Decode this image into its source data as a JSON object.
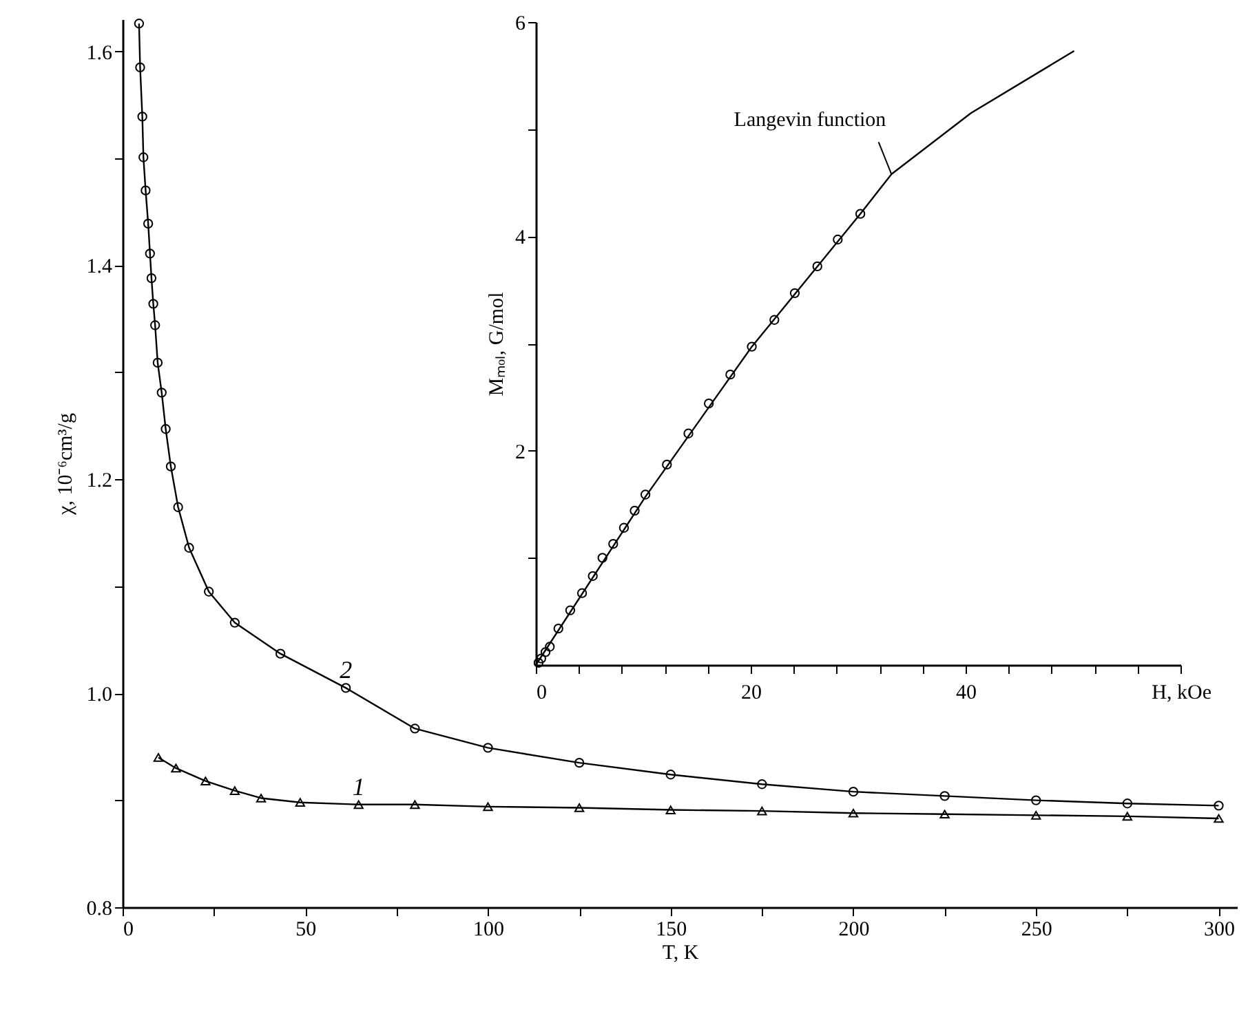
{
  "chart_data": [
    {
      "type": "line",
      "xlabel": "T, K",
      "ylabel": "χ, 10⁻⁶cm³/g",
      "xlim": [
        0,
        305
      ],
      "ylim": [
        0.8,
        1.63
      ],
      "grid": false,
      "xticks": [
        0,
        {
          "value": 25,
          "label": null
        },
        50,
        {
          "value": 75,
          "label": null
        },
        100,
        {
          "value": 125,
          "label": null
        },
        150,
        {
          "value": 175,
          "label": null
        },
        200,
        {
          "value": 225,
          "label": null
        },
        250,
        {
          "value": 275,
          "label": null
        },
        300
      ],
      "yticks": [
        {
          "value": 0.8,
          "label": "0.8"
        },
        {
          "value": 0.9,
          "label": null
        },
        {
          "value": 1.0,
          "label": "1.0"
        },
        {
          "value": 1.1,
          "label": null
        },
        {
          "value": 1.2,
          "label": "1.2"
        },
        {
          "value": 1.3,
          "label": null
        },
        {
          "value": 1.4,
          "label": "1.4"
        },
        {
          "value": 1.5,
          "label": null
        },
        {
          "value": 1.6,
          "label": "1.6"
        }
      ],
      "series": [
        {
          "color": "#000000",
          "marker": "circle",
          "x": [
            4.5,
            4.8,
            5.4,
            5.7,
            6.3,
            7.0,
            7.5,
            7.9,
            8.4,
            8.9,
            9.6,
            10.7,
            11.8,
            13.2,
            15.2,
            18.2,
            23.6,
            30.7,
            43.2,
            61.1,
            80,
            100,
            125,
            150,
            175,
            200,
            225,
            250,
            275,
            300
          ],
          "values": [
            1.626,
            1.585,
            1.539,
            1.501,
            1.47,
            1.439,
            1.411,
            1.388,
            1.364,
            1.344,
            1.309,
            1.281,
            1.247,
            1.212,
            1.174,
            1.136,
            1.095,
            1.066,
            1.037,
            1.005,
            0.967,
            0.949,
            0.935,
            0.924,
            0.915,
            0.908,
            0.904,
            0.9,
            0.897,
            0.895
          ]
        },
        {
          "color": "#000000",
          "marker": "triangle",
          "x": [
            9.8,
            14.6,
            22.7,
            30.7,
            37.9,
            48.6,
            64.6,
            80,
            100,
            125,
            150,
            175,
            200,
            225,
            250,
            275,
            300
          ],
          "values": [
            0.94,
            0.93,
            0.918,
            0.909,
            0.902,
            0.898,
            0.896,
            0.896,
            0.894,
            0.893,
            0.891,
            0.89,
            0.888,
            0.887,
            0.886,
            0.885,
            0.883
          ]
        }
      ],
      "annotations": [
        {
          "text": "2",
          "x": 61.1,
          "y": 1.005
        },
        {
          "text": "1",
          "x": 64.6,
          "y": 0.896
        }
      ]
    },
    {
      "type": "scatter",
      "xlabel": "H, kOe",
      "ylabel": "Mₘₒₗ, G/mol",
      "xlim": [
        0,
        60
      ],
      "ylim": [
        0,
        6
      ],
      "grid": false,
      "xticks": [
        0,
        {
          "value": 4,
          "label": null
        },
        {
          "value": 8,
          "label": null
        },
        {
          "value": 12,
          "label": null
        },
        {
          "value": 16,
          "label": null
        },
        20,
        {
          "value": 24,
          "label": null
        },
        {
          "value": 28,
          "label": null
        },
        {
          "value": 32,
          "label": null
        },
        {
          "value": 36,
          "label": null
        },
        40,
        {
          "value": 44,
          "label": null
        },
        {
          "value": 48,
          "label": null
        },
        {
          "value": 52,
          "label": null
        },
        {
          "value": 56,
          "label": null
        },
        {
          "value": 60,
          "label": null
        }
      ],
      "yticks": [
        {
          "value": 1,
          "label": null
        },
        2,
        {
          "value": 3,
          "label": null
        },
        4,
        {
          "value": 5,
          "label": null
        },
        6
      ],
      "series": [
        {
          "color": "#000000",
          "marker": "circle",
          "x": [
            0.25,
            0.5,
            0.9,
            1.3,
            2.1,
            3.2,
            4.3,
            5.3,
            6.2,
            7.2,
            8.2,
            9.2,
            10.2,
            12.2,
            14.2,
            16.1,
            18.1,
            20.1,
            22.2,
            24.1,
            26.2,
            28.1,
            30.2
          ],
          "values": [
            0.02,
            0.06,
            0.12,
            0.17,
            0.34,
            0.51,
            0.67,
            0.83,
            1.0,
            1.13,
            1.28,
            1.44,
            1.59,
            1.87,
            2.16,
            2.44,
            2.71,
            2.97,
            3.22,
            3.47,
            3.72,
            3.97,
            4.21
          ]
        },
        {
          "type": "line",
          "color": "#000000",
          "marker": "none",
          "x": [
            0,
            10.2,
            20.1,
            30.2,
            33.1,
            40.5,
            50.1
          ],
          "values": [
            0,
            1.57,
            2.97,
            4.21,
            4.58,
            5.15,
            5.73
          ]
        }
      ],
      "annotations": [
        {
          "text": "Langevin function",
          "x": 33.1,
          "y": 4.58
        }
      ]
    }
  ]
}
